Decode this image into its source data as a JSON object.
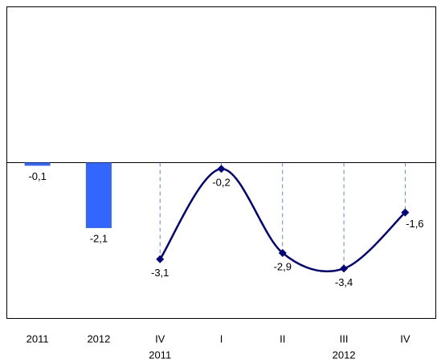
{
  "chart_data": {
    "type": "bar-line",
    "categories": [
      "2011",
      "2012",
      "IV",
      "I",
      "II",
      "III",
      "IV"
    ],
    "x_sublabels": [
      null,
      null,
      "2011",
      null,
      null,
      "2012",
      null
    ],
    "series": [
      {
        "type": "bar",
        "color": "#3366ff",
        "values": [
          -0.1,
          -2.1,
          null,
          null,
          null,
          null,
          null
        ],
        "value_labels": [
          "-0,1",
          "-2,1",
          null,
          null,
          null,
          null,
          null
        ]
      },
      {
        "type": "line",
        "color": "#000080",
        "values": [
          null,
          null,
          -3.1,
          -0.2,
          -2.9,
          -3.4,
          -1.6
        ],
        "value_labels": [
          null,
          null,
          "-3,1",
          "-0,2",
          "-2,9",
          "-3,4",
          "-1,6"
        ]
      }
    ],
    "ylim": [
      -5,
      5
    ]
  }
}
